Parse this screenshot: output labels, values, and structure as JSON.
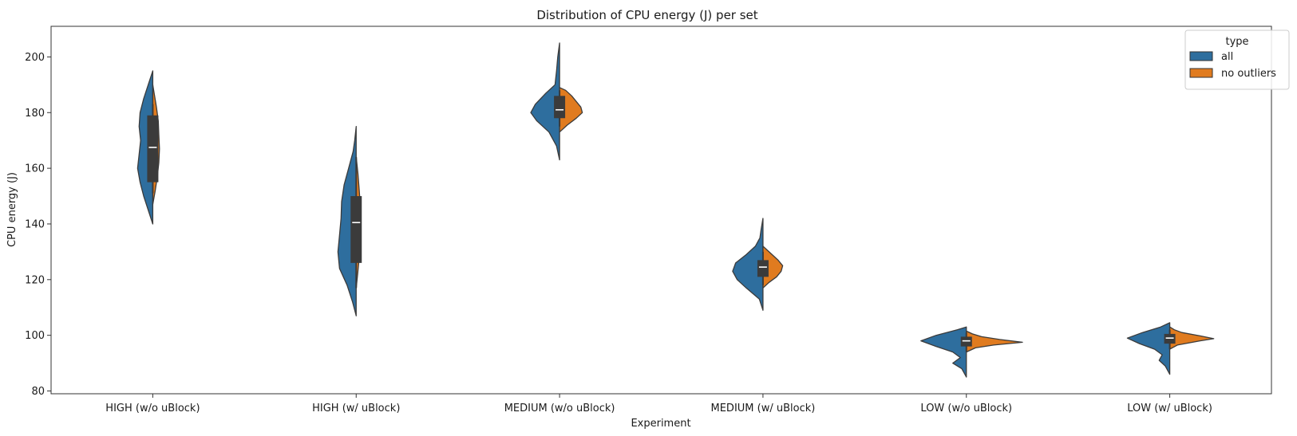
{
  "chart_data": {
    "type": "violin",
    "title": "Distribution of CPU energy (J) per set",
    "xlabel": "Experiment",
    "ylabel": "CPU energy (J)",
    "ylim": [
      79,
      211
    ],
    "yticks": [
      80,
      100,
      120,
      140,
      160,
      180,
      200
    ],
    "categories": [
      "HIGH (w/o uBlock)",
      "HIGH (w/ uBlock)",
      "MEDIUM (w/o uBlock)",
      "MEDIUM (w/ uBlock)",
      "LOW (w/o uBlock)",
      "LOW (w/ uBlock)"
    ],
    "legend": {
      "title": "type",
      "placement": "top-right",
      "entries": [
        {
          "name": "all",
          "color": "#2e6e9e"
        },
        {
          "name": "no outliers",
          "color": "#e07b1f"
        }
      ]
    },
    "grid": false,
    "series": [
      {
        "name": "all",
        "color": "#2e6e9e",
        "violins": [
          {
            "min": 140,
            "max": 195,
            "q1": 155,
            "median": 167.5,
            "q3": 179,
            "whisker_low": 151,
            "whisker_high": 183,
            "profile": [
              [
                140,
                0.0
              ],
              [
                145,
                0.15
              ],
              [
                150,
                0.3
              ],
              [
                155,
                0.42
              ],
              [
                160,
                0.5
              ],
              [
                165,
                0.45
              ],
              [
                170,
                0.4
              ],
              [
                175,
                0.45
              ],
              [
                180,
                0.42
              ],
              [
                185,
                0.3
              ],
              [
                190,
                0.15
              ],
              [
                195,
                0.0
              ]
            ]
          },
          {
            "min": 107,
            "max": 175,
            "q1": 126,
            "median": 140.5,
            "q3": 150,
            "whisker_low": 117,
            "whisker_high": 164,
            "profile": [
              [
                107,
                0.0
              ],
              [
                112,
                0.12
              ],
              [
                118,
                0.3
              ],
              [
                124,
                0.55
              ],
              [
                130,
                0.6
              ],
              [
                136,
                0.55
              ],
              [
                142,
                0.5
              ],
              [
                148,
                0.48
              ],
              [
                154,
                0.4
              ],
              [
                160,
                0.25
              ],
              [
                166,
                0.1
              ],
              [
                170,
                0.05
              ],
              [
                175,
                0.0
              ]
            ]
          },
          {
            "min": 163,
            "max": 205,
            "q1": 178,
            "median": 181,
            "q3": 186,
            "whisker_low": 175,
            "whisker_high": 188,
            "profile": [
              [
                163,
                0.0
              ],
              [
                168,
                0.1
              ],
              [
                173,
                0.35
              ],
              [
                177,
                0.75
              ],
              [
                180,
                0.95
              ],
              [
                183,
                0.8
              ],
              [
                187,
                0.45
              ],
              [
                190,
                0.15
              ],
              [
                195,
                0.1
              ],
              [
                200,
                0.06
              ],
              [
                205,
                0.0
              ]
            ]
          },
          {
            "min": 109,
            "max": 142,
            "q1": 121,
            "median": 124.5,
            "q3": 127,
            "whisker_low": 118,
            "whisker_high": 130,
            "profile": [
              [
                109,
                0.0
              ],
              [
                113,
                0.12
              ],
              [
                117,
                0.55
              ],
              [
                120,
                0.85
              ],
              [
                123,
                1.0
              ],
              [
                126,
                0.9
              ],
              [
                129,
                0.55
              ],
              [
                132,
                0.25
              ],
              [
                135,
                0.1
              ],
              [
                138,
                0.06
              ],
              [
                142,
                0.0
              ]
            ]
          },
          {
            "min": 85,
            "max": 103,
            "q1": 96,
            "median": 98,
            "q3": 99.5,
            "whisker_low": 94,
            "whisker_high": 101,
            "profile": [
              [
                85,
                0.0
              ],
              [
                88,
                0.15
              ],
              [
                90,
                0.45
              ],
              [
                92,
                0.2
              ],
              [
                94,
                0.45
              ],
              [
                96,
                1.0
              ],
              [
                98,
                1.5
              ],
              [
                100,
                1.0
              ],
              [
                102,
                0.3
              ],
              [
                103,
                0.0
              ]
            ]
          },
          {
            "min": 86,
            "max": 104.5,
            "q1": 97,
            "median": 99,
            "q3": 100.5,
            "whisker_low": 95,
            "whisker_high": 102,
            "profile": [
              [
                86,
                0.0
              ],
              [
                89,
                0.15
              ],
              [
                91,
                0.35
              ],
              [
                93,
                0.25
              ],
              [
                95,
                0.5
              ],
              [
                97,
                1.0
              ],
              [
                99,
                1.4
              ],
              [
                101,
                0.9
              ],
              [
                103,
                0.3
              ],
              [
                104.5,
                0.0
              ]
            ]
          }
        ]
      },
      {
        "name": "no outliers",
        "color": "#e07b1f",
        "violins": [
          {
            "min": 147,
            "max": 190,
            "q1": 155,
            "median": 167.5,
            "q3": 179,
            "whisker_low": 151,
            "whisker_high": 183,
            "profile": [
              [
                147,
                0.0
              ],
              [
                152,
                0.08
              ],
              [
                157,
                0.15
              ],
              [
                162,
                0.2
              ],
              [
                167,
                0.22
              ],
              [
                172,
                0.2
              ],
              [
                177,
                0.18
              ],
              [
                182,
                0.12
              ],
              [
                186,
                0.06
              ],
              [
                190,
                0.0
              ]
            ]
          },
          {
            "min": 117,
            "max": 164,
            "q1": 126,
            "median": 140.5,
            "q3": 150,
            "whisker_low": 117,
            "whisker_high": 164,
            "profile": [
              [
                117,
                0.0
              ],
              [
                122,
                0.05
              ],
              [
                128,
                0.1
              ],
              [
                134,
                0.12
              ],
              [
                140,
                0.15
              ],
              [
                146,
                0.14
              ],
              [
                152,
                0.1
              ],
              [
                158,
                0.06
              ],
              [
                164,
                0.0
              ]
            ]
          },
          {
            "min": 173,
            "max": 189,
            "q1": 178,
            "median": 181,
            "q3": 186,
            "whisker_low": 175,
            "whisker_high": 188,
            "profile": [
              [
                173,
                0.0
              ],
              [
                175.5,
                0.25
              ],
              [
                178,
                0.55
              ],
              [
                180,
                0.75
              ],
              [
                182,
                0.7
              ],
              [
                184,
                0.55
              ],
              [
                186,
                0.4
              ],
              [
                188,
                0.2
              ],
              [
                189,
                0.0
              ]
            ]
          },
          {
            "min": 117,
            "max": 132,
            "q1": 121,
            "median": 124.5,
            "q3": 127,
            "whisker_low": 118,
            "whisker_high": 130,
            "profile": [
              [
                117,
                0.0
              ],
              [
                119,
                0.2
              ],
              [
                121,
                0.45
              ],
              [
                123,
                0.6
              ],
              [
                125,
                0.65
              ],
              [
                127,
                0.5
              ],
              [
                129,
                0.3
              ],
              [
                131,
                0.1
              ],
              [
                132,
                0.0
              ]
            ]
          },
          {
            "min": 94,
            "max": 101.5,
            "q1": 96,
            "median": 98,
            "q3": 99.5,
            "whisker_low": 94,
            "whisker_high": 101,
            "profile": [
              [
                94,
                0.0
              ],
              [
                95.5,
                0.3
              ],
              [
                96.5,
                0.9
              ],
              [
                97.5,
                1.85
              ],
              [
                98.5,
                1.1
              ],
              [
                99.5,
                0.5
              ],
              [
                100.5,
                0.2
              ],
              [
                101.5,
                0.0
              ]
            ]
          },
          {
            "min": 95,
            "max": 103,
            "q1": 97,
            "median": 99,
            "q3": 100.5,
            "whisker_low": 95,
            "whisker_high": 102,
            "profile": [
              [
                95,
                0.0
              ],
              [
                96.5,
                0.25
              ],
              [
                98,
                1.0
              ],
              [
                98.8,
                1.45
              ],
              [
                99.8,
                1.0
              ],
              [
                101,
                0.4
              ],
              [
                102,
                0.15
              ],
              [
                103,
                0.0
              ]
            ]
          }
        ]
      }
    ]
  }
}
